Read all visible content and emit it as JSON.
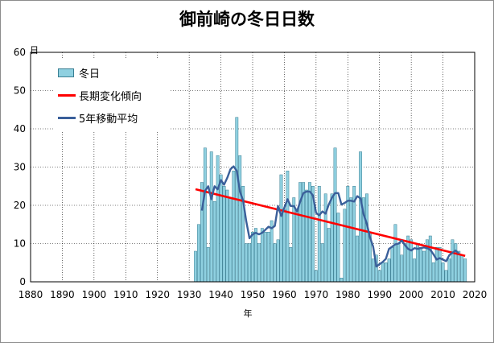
{
  "chart_data": {
    "type": "bar",
    "title": "御前崎の冬日日数",
    "xlabel": "年",
    "ylabel": "日",
    "xlim": [
      1880,
      2020
    ],
    "ylim": [
      0,
      60
    ],
    "x_ticks": [
      "1880",
      "1890",
      "1900",
      "1910",
      "1920",
      "1930",
      "1940",
      "1950",
      "1960",
      "1970",
      "1980",
      "1990",
      "2000",
      "2010",
      "2020"
    ],
    "y_ticks": [
      "0",
      "10",
      "20",
      "30",
      "40",
      "50",
      "60"
    ],
    "grid": true,
    "legend_position": "top-left",
    "colors": {
      "bars": "#8fd0e0",
      "bar_edge": "#3a7f93",
      "trend": "#ff0000",
      "moving_average": "#3a5f9a",
      "grid": "#000000"
    },
    "series": [
      {
        "name": "冬日",
        "kind": "bar",
        "x": [
          1932,
          1933,
          1934,
          1935,
          1936,
          1937,
          1938,
          1939,
          1940,
          1941,
          1942,
          1943,
          1944,
          1945,
          1946,
          1947,
          1948,
          1949,
          1950,
          1951,
          1952,
          1953,
          1954,
          1955,
          1956,
          1957,
          1958,
          1959,
          1960,
          1961,
          1962,
          1963,
          1964,
          1965,
          1966,
          1967,
          1968,
          1969,
          1970,
          1971,
          1972,
          1973,
          1974,
          1975,
          1976,
          1977,
          1978,
          1979,
          1980,
          1981,
          1982,
          1983,
          1984,
          1985,
          1986,
          1987,
          1988,
          1989,
          1990,
          1991,
          1992,
          1993,
          1994,
          1995,
          1996,
          1997,
          1998,
          1999,
          2000,
          2001,
          2002,
          2003,
          2004,
          2005,
          2006,
          2007,
          2008,
          2009,
          2010,
          2011,
          2012,
          2013,
          2014,
          2015,
          2016,
          2017
        ],
        "values": [
          8,
          15,
          26,
          35,
          9,
          34,
          21,
          33,
          28,
          25,
          24,
          22,
          29,
          43,
          33,
          25,
          10,
          10,
          13,
          14,
          10,
          14,
          13,
          13,
          16,
          10,
          11,
          28,
          19,
          29,
          9,
          22,
          19,
          26,
          26,
          24,
          26,
          25,
          3,
          25,
          10,
          23,
          14,
          23,
          35,
          18,
          1,
          19,
          25,
          22,
          25,
          12,
          34,
          22,
          23,
          13,
          6,
          7,
          3,
          5,
          5,
          6,
          9,
          15,
          10,
          7,
          10,
          12,
          11,
          6,
          10,
          9,
          8,
          11,
          12,
          5,
          9,
          9,
          5,
          3,
          6,
          11,
          10,
          8,
          7,
          6
        ]
      },
      {
        "name": "長期変化傾向",
        "kind": "line",
        "x": [
          1932,
          2017
        ],
        "values": [
          24.2,
          6.8
        ]
      },
      {
        "name": "5年移動平均",
        "kind": "line",
        "x": [
          1934,
          1935,
          1936,
          1937,
          1938,
          1939,
          1940,
          1941,
          1942,
          1943,
          1944,
          1945,
          1946,
          1947,
          1948,
          1949,
          1950,
          1951,
          1952,
          1953,
          1954,
          1955,
          1956,
          1957,
          1958,
          1959,
          1960,
          1961,
          1962,
          1963,
          1964,
          1965,
          1966,
          1967,
          1968,
          1969,
          1970,
          1971,
          1972,
          1973,
          1974,
          1975,
          1976,
          1977,
          1978,
          1979,
          1980,
          1981,
          1982,
          1983,
          1984,
          1985,
          1986,
          1987,
          1988,
          1989,
          1990,
          1991,
          1992,
          1993,
          1994,
          1995,
          1996,
          1997,
          1998,
          1999,
          2000,
          2001,
          2002,
          2003,
          2004,
          2005,
          2006,
          2007,
          2008,
          2009,
          2010,
          2011,
          2012,
          2013,
          2014,
          2015
        ],
        "values": [
          18.6,
          23.8,
          25.0,
          21.6,
          25.0,
          24.2,
          26.6,
          25.4,
          27.2,
          29.4,
          30.2,
          29.0,
          23.6,
          21.2,
          15.8,
          11.4,
          12.4,
          12.8,
          12.4,
          12.8,
          13.6,
          14.4,
          14.0,
          14.6,
          19.8,
          17.2,
          19.4,
          21.6,
          19.8,
          19.8,
          18.4,
          21.0,
          23.2,
          23.6,
          23.6,
          22.6,
          18.0,
          17.4,
          18.4,
          17.8,
          20.2,
          22.0,
          23.2,
          23.2,
          20.2,
          20.6,
          21.2,
          21.2,
          21.0,
          22.4,
          21.8,
          17.6,
          15.2,
          11.6,
          9.2,
          4.0,
          4.6,
          5.2,
          6.0,
          8.6,
          9.2,
          9.8,
          10.0,
          10.8,
          9.6,
          8.6,
          8.2,
          8.8,
          8.6,
          8.8,
          9.0,
          8.8,
          8.4,
          7.2,
          5.8,
          6.2,
          5.8,
          5.4,
          7.0,
          7.6,
          8.2,
          7.4
        ]
      }
    ]
  }
}
